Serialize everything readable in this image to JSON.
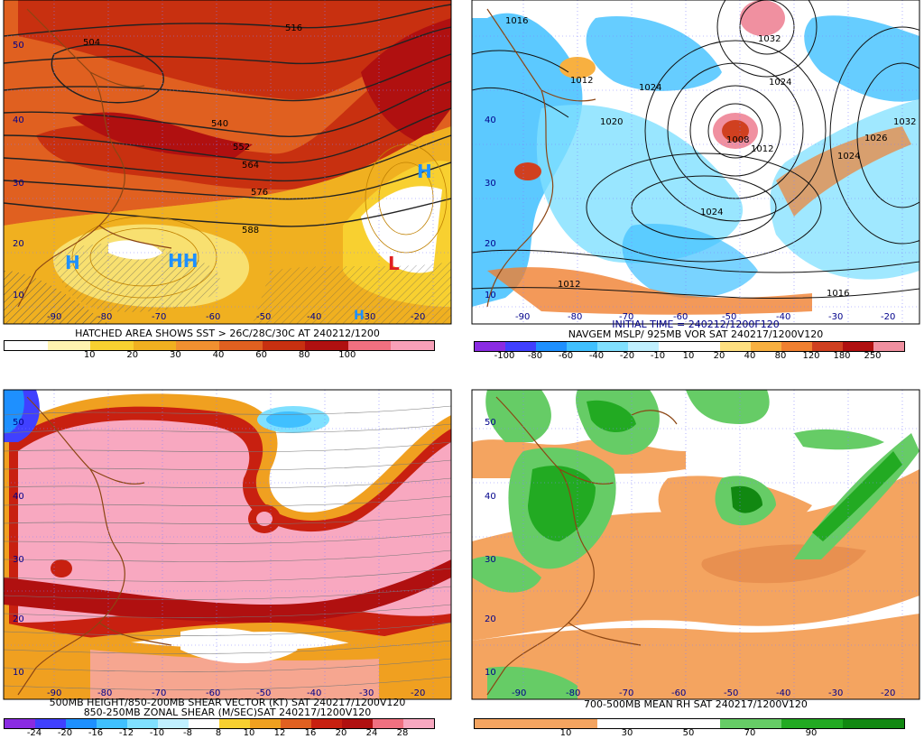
{
  "panels": [
    {
      "id": "tl",
      "caption": "HATCHED AREA SHOWS SST > 26C/28C/30C AT 240212/1200",
      "colorbar_ticks": [
        "10",
        "20",
        "30",
        "40",
        "60",
        "80",
        "100"
      ],
      "colorbar_colors": [
        "#ffffff",
        "#fff3b0",
        "#f8d030",
        "#f0b020",
        "#f09030",
        "#e06020",
        "#c83010",
        "#b01010",
        "#f07080",
        "#f8a0b8"
      ],
      "lat_labels": [
        "50",
        "40",
        "30",
        "20",
        "10"
      ],
      "lon_labels": [
        "-90",
        "-80",
        "-70",
        "-60",
        "-50",
        "-40",
        "-30",
        "-20"
      ],
      "contour_labels": [
        "504",
        "516",
        "540",
        "552",
        "564",
        "576",
        "588"
      ],
      "centers": [
        {
          "t": "H",
          "c": "#1e90ff"
        },
        {
          "t": "HH",
          "c": "#1e90ff"
        },
        {
          "t": "H",
          "c": "#1e90ff"
        },
        {
          "t": "L",
          "c": "#e02020"
        },
        {
          "t": "H",
          "c": "#1e90ff"
        }
      ]
    },
    {
      "id": "tr",
      "caption_line1": "INITIAL TIME = 240212/1200F120",
      "caption_line2": "NAVGEM MSLP/ 925MB VOR SAT 240217/1200V120",
      "colorbar_ticks": [
        "-100",
        "-80",
        "-60",
        "-40",
        "-20",
        "-10",
        "10",
        "20",
        "40",
        "80",
        "120",
        "180",
        "250"
      ],
      "colorbar_colors": [
        "#8a2be2",
        "#4040ff",
        "#1e90ff",
        "#40c0ff",
        "#80e0ff",
        "#c0f0ff",
        "#ffffff",
        "#ffffff",
        "#ffe080",
        "#f8b040",
        "#f08030",
        "#d04020",
        "#b01010",
        "#f090a0"
      ],
      "lat_labels": [
        "40",
        "30",
        "20",
        "10"
      ],
      "lon_labels": [
        "-90",
        "-80",
        "-70",
        "-60",
        "-50",
        "-40",
        "-30",
        "-20"
      ],
      "contour_labels": [
        "1016",
        "1032",
        "1024",
        "1020",
        "1008",
        "1012",
        "1024",
        "1032",
        "1026",
        "1024",
        "1024",
        "1012",
        "1016",
        "1012"
      ]
    },
    {
      "id": "bl",
      "caption_line1": "500MB HEIGHT/850-200MB SHEAR VECTOR (KT) SAT 240217/1200V120",
      "caption_line2": "850-250MB ZONAL SHEAR (M/SEC)SAT 240217/1200V120",
      "colorbar_ticks": [
        "-24",
        "-20",
        "-16",
        "-12",
        "-10",
        "-8",
        "8",
        "10",
        "12",
        "16",
        "20",
        "24",
        "28"
      ],
      "colorbar_colors": [
        "#8a2be2",
        "#4040ff",
        "#1e90ff",
        "#40c0ff",
        "#80e0ff",
        "#c0f0ff",
        "#ffffff",
        "#f8d030",
        "#f0a020",
        "#e06020",
        "#c82010",
        "#b01010",
        "#f07080",
        "#f8a8c0"
      ],
      "lat_labels": [
        "50",
        "40",
        "30",
        "20",
        "10"
      ],
      "lon_labels": [
        "-90",
        "-80",
        "-70",
        "-60",
        "-50",
        "-40",
        "-30",
        "-20"
      ]
    },
    {
      "id": "br",
      "caption": "700-500MB MEAN RH SAT 240217/1200V120",
      "colorbar_ticks": [
        "10",
        "30",
        "50",
        "70",
        "90"
      ],
      "colorbar_colors": [
        "#f4a460",
        "#f4a460",
        "#ffffff",
        "#ffffff",
        "#66cc66",
        "#22aa22",
        "#118811"
      ],
      "lat_labels": [
        "50",
        "40",
        "30",
        "20",
        "10"
      ],
      "lon_labels": [
        "-90",
        "-80",
        "-70",
        "-60",
        "-50",
        "-40",
        "-30",
        "-20"
      ]
    }
  ]
}
